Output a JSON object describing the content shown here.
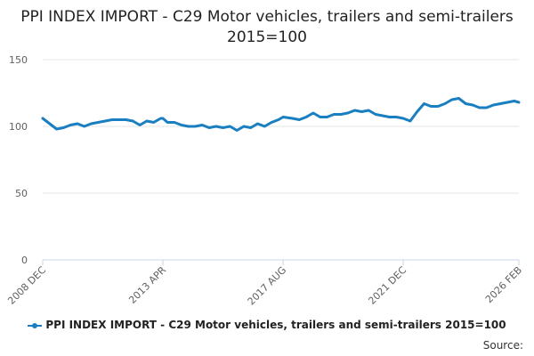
{
  "chart_data": {
    "type": "line",
    "title": "PPI INDEX IMPORT - C29 Motor vehicles, trailers and semi-trailers 2015=100",
    "xlabel": "",
    "ylabel": "",
    "ylim": [
      0,
      150
    ],
    "yticks": [
      0,
      50,
      100,
      150
    ],
    "x_range": [
      "2008 DEC",
      "2026 FEB"
    ],
    "xtick_labels": [
      "2008 DEC",
      "2013 APR",
      "2017 AUG",
      "2021 DEC",
      "2026 FEB"
    ],
    "grid": "horizontal",
    "legend_position": "bottom",
    "series": [
      {
        "name": "PPI INDEX IMPORT - C29 Motor vehicles, trailers and semi-trailers 2015=100",
        "color": "#1a7fc1",
        "x": [
          "2008-12",
          "2009-03",
          "2009-06",
          "2009-09",
          "2009-12",
          "2010-03",
          "2010-06",
          "2010-09",
          "2010-12",
          "2011-03",
          "2011-06",
          "2011-09",
          "2011-12",
          "2012-03",
          "2012-06",
          "2012-09",
          "2012-12",
          "2013-03",
          "2013-04",
          "2013-06",
          "2013-09",
          "2013-12",
          "2014-03",
          "2014-06",
          "2014-09",
          "2014-12",
          "2015-03",
          "2015-06",
          "2015-09",
          "2015-12",
          "2016-03",
          "2016-06",
          "2016-09",
          "2016-12",
          "2017-03",
          "2017-06",
          "2017-08",
          "2017-12",
          "2018-03",
          "2018-06",
          "2018-09",
          "2018-12",
          "2019-03",
          "2019-06",
          "2019-09",
          "2019-12",
          "2020-03",
          "2020-06",
          "2020-09",
          "2020-12",
          "2021-03",
          "2021-06",
          "2021-09",
          "2021-12",
          "2022-03",
          "2022-06",
          "2022-09",
          "2022-12",
          "2023-03",
          "2023-06",
          "2023-09",
          "2023-12",
          "2024-03",
          "2024-06",
          "2024-09",
          "2024-12",
          "2025-03",
          "2025-06",
          "2025-09",
          "2025-12",
          "2026-02"
        ],
        "values": [
          106,
          102,
          98,
          99,
          101,
          102,
          100,
          102,
          103,
          104,
          105,
          105,
          105,
          104,
          101,
          104,
          103,
          106,
          106,
          103,
          103,
          101,
          100,
          100,
          101,
          99,
          100,
          99,
          100,
          97,
          100,
          99,
          102,
          100,
          103,
          105,
          107,
          106,
          105,
          107,
          110,
          107,
          107,
          109,
          109,
          110,
          112,
          111,
          112,
          109,
          108,
          107,
          107,
          106,
          104,
          111,
          117,
          115,
          115,
          117,
          120,
          121,
          117,
          116,
          114,
          114,
          116,
          117,
          118,
          119,
          118
        ]
      }
    ]
  },
  "legend": {
    "items": [
      "PPI INDEX IMPORT - C29 Motor vehicles, trailers and semi-trailers 2015=100"
    ]
  },
  "footer": {
    "source_label": "Source:"
  }
}
